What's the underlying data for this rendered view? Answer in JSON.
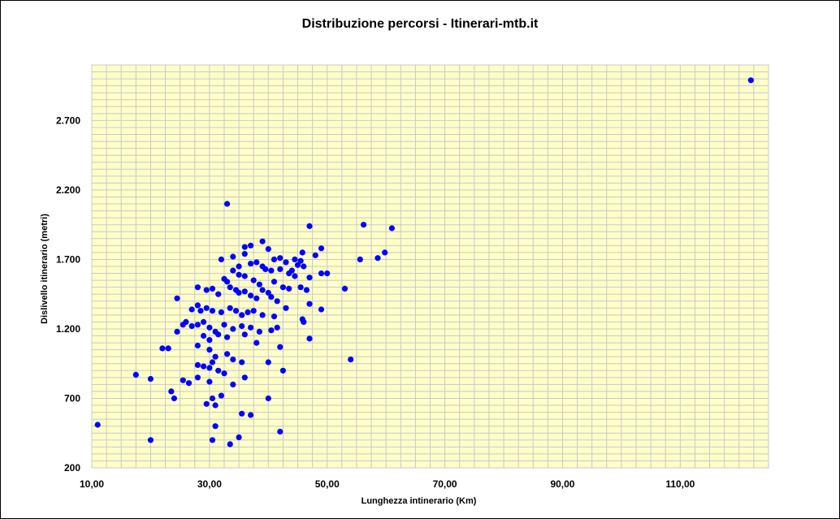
{
  "chart_data": {
    "type": "scatter",
    "title": "Distribuzione percorsi - Itinerari-mtb.it",
    "xlabel": "Lunghezza intinerario (Km)",
    "ylabel": "Dislivello itinerario (metri)",
    "xlim": [
      10,
      125
    ],
    "ylim": [
      200,
      3100
    ],
    "x_ticks": [
      10,
      30,
      50,
      70,
      90,
      110
    ],
    "x_tick_labels": [
      "10,00",
      "30,00",
      "50,00",
      "70,00",
      "90,00",
      "110,00"
    ],
    "y_ticks": [
      200,
      700,
      1200,
      1700,
      2200,
      2700
    ],
    "y_tick_labels": [
      "200",
      "700",
      "1.200",
      "1.700",
      "2.200",
      "2.700"
    ],
    "grid": true,
    "legend": "none",
    "colors": {
      "plot_background": "#ffffc8",
      "grid": "#c8c8c8",
      "point": "#0000ff"
    },
    "points": [
      [
        122.0,
        2990
      ],
      [
        33.0,
        2100
      ],
      [
        56.2,
        1950
      ],
      [
        47.0,
        1940
      ],
      [
        61.0,
        1925
      ],
      [
        39.0,
        1830
      ],
      [
        37.0,
        1800
      ],
      [
        36.0,
        1790
      ],
      [
        40.0,
        1775
      ],
      [
        49.0,
        1780
      ],
      [
        59.8,
        1750
      ],
      [
        58.6,
        1710
      ],
      [
        55.6,
        1700
      ],
      [
        45.8,
        1750
      ],
      [
        48.0,
        1730
      ],
      [
        34.0,
        1720
      ],
      [
        36.0,
        1740
      ],
      [
        38.0,
        1680
      ],
      [
        41.0,
        1700
      ],
      [
        42.0,
        1710
      ],
      [
        43.0,
        1680
      ],
      [
        44.5,
        1700
      ],
      [
        45.0,
        1660
      ],
      [
        45.5,
        1690
      ],
      [
        46.0,
        1650
      ],
      [
        32.0,
        1700
      ],
      [
        35.0,
        1650
      ],
      [
        37.0,
        1670
      ],
      [
        39.0,
        1650
      ],
      [
        39.5,
        1630
      ],
      [
        40.5,
        1620
      ],
      [
        42.0,
        1630
      ],
      [
        43.5,
        1600
      ],
      [
        44.0,
        1620
      ],
      [
        44.5,
        1580
      ],
      [
        47.0,
        1570
      ],
      [
        49.0,
        1600
      ],
      [
        50.0,
        1600
      ],
      [
        34.0,
        1620
      ],
      [
        35.0,
        1590
      ],
      [
        36.0,
        1580
      ],
      [
        37.5,
        1550
      ],
      [
        38.5,
        1520
      ],
      [
        41.0,
        1540
      ],
      [
        42.5,
        1500
      ],
      [
        43.5,
        1490
      ],
      [
        45.5,
        1500
      ],
      [
        46.5,
        1480
      ],
      [
        53.0,
        1490
      ],
      [
        28.0,
        1500
      ],
      [
        29.5,
        1480
      ],
      [
        30.5,
        1490
      ],
      [
        31.5,
        1450
      ],
      [
        32.5,
        1560
      ],
      [
        33.0,
        1540
      ],
      [
        33.5,
        1500
      ],
      [
        34.5,
        1480
      ],
      [
        35.0,
        1460
      ],
      [
        36.0,
        1470
      ],
      [
        37.0,
        1440
      ],
      [
        38.0,
        1420
      ],
      [
        39.0,
        1480
      ],
      [
        40.0,
        1460
      ],
      [
        40.5,
        1430
      ],
      [
        41.5,
        1400
      ],
      [
        24.5,
        1420
      ],
      [
        27.0,
        1340
      ],
      [
        28.0,
        1370
      ],
      [
        28.5,
        1330
      ],
      [
        29.5,
        1350
      ],
      [
        30.5,
        1330
      ],
      [
        32.0,
        1320
      ],
      [
        33.5,
        1350
      ],
      [
        34.5,
        1330
      ],
      [
        35.5,
        1300
      ],
      [
        36.5,
        1320
      ],
      [
        37.5,
        1330
      ],
      [
        39.0,
        1300
      ],
      [
        41.0,
        1290
      ],
      [
        43.0,
        1350
      ],
      [
        47.0,
        1380
      ],
      [
        49.0,
        1340
      ],
      [
        46.0,
        1250
      ],
      [
        45.8,
        1270
      ],
      [
        26.0,
        1250
      ],
      [
        27.0,
        1220
      ],
      [
        28.0,
        1230
      ],
      [
        29.0,
        1250
      ],
      [
        30.0,
        1210
      ],
      [
        31.0,
        1180
      ],
      [
        32.5,
        1230
      ],
      [
        34.0,
        1200
      ],
      [
        35.5,
        1220
      ],
      [
        37.0,
        1210
      ],
      [
        38.5,
        1180
      ],
      [
        40.5,
        1190
      ],
      [
        41.5,
        1210
      ],
      [
        24.5,
        1180
      ],
      [
        25.5,
        1230
      ],
      [
        29.0,
        1150
      ],
      [
        30.0,
        1120
      ],
      [
        31.5,
        1160
      ],
      [
        33.0,
        1140
      ],
      [
        36.0,
        1160
      ],
      [
        38.0,
        1100
      ],
      [
        42.0,
        1070
      ],
      [
        47.0,
        1130
      ],
      [
        22.0,
        1060
      ],
      [
        23.0,
        1060
      ],
      [
        28.0,
        1080
      ],
      [
        30.0,
        1050
      ],
      [
        31.0,
        1000
      ],
      [
        33.0,
        1020
      ],
      [
        34.0,
        980
      ],
      [
        35.5,
        960
      ],
      [
        40.0,
        960
      ],
      [
        54.0,
        980
      ],
      [
        28.0,
        940
      ],
      [
        29.0,
        930
      ],
      [
        30.0,
        920
      ],
      [
        30.5,
        960
      ],
      [
        31.5,
        900
      ],
      [
        32.5,
        880
      ],
      [
        42.5,
        900
      ],
      [
        17.5,
        870
      ],
      [
        20.0,
        840
      ],
      [
        25.5,
        830
      ],
      [
        26.5,
        810
      ],
      [
        28.0,
        850
      ],
      [
        30.0,
        820
      ],
      [
        34.0,
        800
      ],
      [
        36.0,
        850
      ],
      [
        23.5,
        750
      ],
      [
        24.0,
        700
      ],
      [
        29.5,
        660
      ],
      [
        30.5,
        700
      ],
      [
        31.0,
        650
      ],
      [
        32.0,
        720
      ],
      [
        40.0,
        700
      ],
      [
        35.5,
        590
      ],
      [
        37.0,
        580
      ],
      [
        31.0,
        500
      ],
      [
        42.0,
        460
      ],
      [
        11.0,
        510
      ],
      [
        20.0,
        400
      ],
      [
        30.5,
        400
      ],
      [
        33.5,
        370
      ],
      [
        35.0,
        420
      ]
    ]
  }
}
